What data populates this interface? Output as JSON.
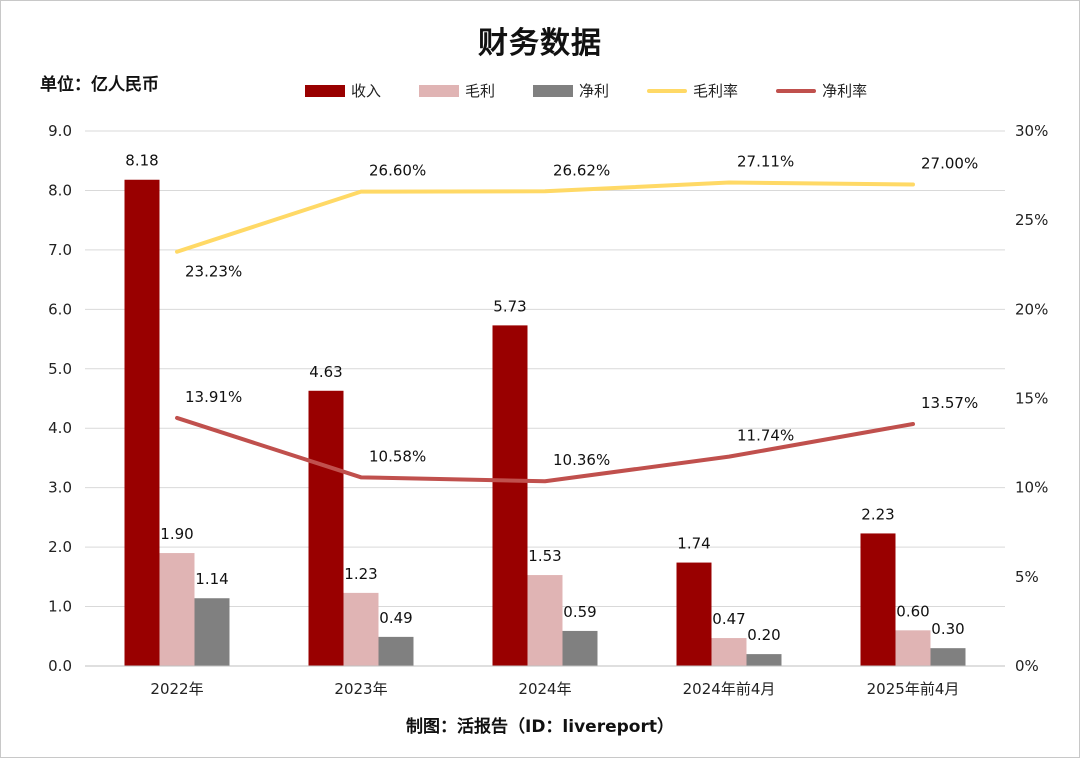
{
  "title": "财务数据",
  "unit": "单位：亿人民币",
  "source": "制图：活报告（ID：livereport）",
  "colors": {
    "revenue": "#990000",
    "gross_profit": "#e0b4b4",
    "net_profit": "#808080",
    "gross_margin": "#ffd966",
    "net_margin": "#c0504d",
    "grid": "#d9d9d9"
  },
  "legend": [
    {
      "label": "收入",
      "kind": "bar",
      "color": "#990000"
    },
    {
      "label": "毛利",
      "kind": "bar",
      "color": "#e0b4b4"
    },
    {
      "label": "净利",
      "kind": "bar",
      "color": "#808080"
    },
    {
      "label": "毛利率",
      "kind": "line",
      "color": "#ffd966"
    },
    {
      "label": "净利率",
      "kind": "line",
      "color": "#c0504d"
    }
  ],
  "chart_data": {
    "type": "bar",
    "title": "财务数据",
    "categories": [
      "2022年",
      "2023年",
      "2024年",
      "2024年前4月",
      "2025年前4月"
    ],
    "series": [
      {
        "name": "收入",
        "type": "bar",
        "axis": "left",
        "values": [
          8.18,
          4.63,
          5.73,
          1.74,
          2.23
        ],
        "labels": [
          "8.18",
          "4.63",
          "5.73",
          "1.74",
          "2.23"
        ]
      },
      {
        "name": "毛利",
        "type": "bar",
        "axis": "left",
        "values": [
          1.9,
          1.23,
          1.53,
          0.47,
          0.6
        ],
        "labels": [
          "1.90",
          "1.23",
          "1.53",
          "0.47",
          "0.60"
        ]
      },
      {
        "name": "净利",
        "type": "bar",
        "axis": "left",
        "values": [
          1.14,
          0.49,
          0.59,
          0.2,
          0.3
        ],
        "labels": [
          "1.14",
          "0.49",
          "0.59",
          "0.20",
          "0.30"
        ]
      },
      {
        "name": "毛利率",
        "type": "line",
        "axis": "right",
        "values": [
          23.23,
          26.6,
          26.62,
          27.11,
          27.0
        ],
        "labels": [
          "23.23%",
          "26.60%",
          "26.62%",
          "27.11%",
          "27.00%"
        ]
      },
      {
        "name": "净利率",
        "type": "line",
        "axis": "right",
        "values": [
          13.91,
          10.58,
          10.36,
          11.74,
          13.57
        ],
        "labels": [
          "13.91%",
          "10.58%",
          "10.36%",
          "11.74%",
          "13.57%"
        ]
      }
    ],
    "ylim": [
      0,
      9
    ],
    "yticks": [
      "0.0",
      "1.0",
      "2.0",
      "3.0",
      "4.0",
      "5.0",
      "6.0",
      "7.0",
      "8.0",
      "9.0"
    ],
    "y2lim": [
      0,
      30
    ],
    "y2ticks": [
      "0%",
      "5%",
      "10%",
      "15%",
      "20%",
      "25%",
      "30%"
    ],
    "xlabel": "",
    "ylabel": "",
    "grid": true,
    "legend_position": "top"
  }
}
